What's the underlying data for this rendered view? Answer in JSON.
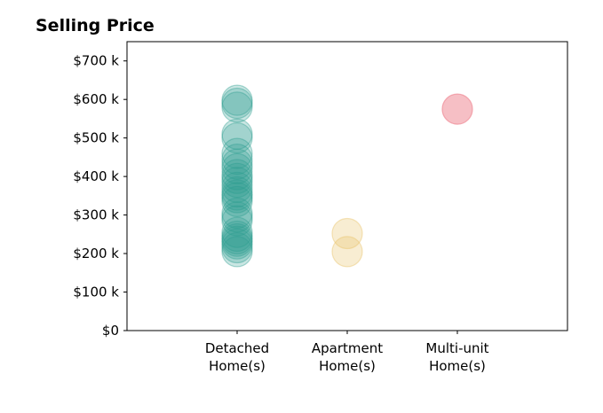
{
  "chart_data": {
    "type": "scatter",
    "title": "Selling Price",
    "xlabel": "",
    "ylabel": "",
    "categories": [
      "Detached\nHome(s)",
      "Apartment\nHome(s)",
      "Multi-unit\nHome(s)"
    ],
    "ylim": [
      0,
      750000
    ],
    "y_ticks": [
      0,
      100000,
      200000,
      300000,
      400000,
      500000,
      600000,
      700000
    ],
    "y_tick_labels": [
      "$0",
      "$100 k",
      "$200 k",
      "$300 k",
      "$400 k",
      "$500 k",
      "$600 k",
      "$700 k"
    ],
    "grid": false,
    "series": [
      {
        "category": "Detached\nHome(s)",
        "color": "#2a9d8f",
        "opacity": 0.25,
        "values": [
          205000,
          215000,
          225000,
          232000,
          238000,
          245000,
          255000,
          285000,
          295000,
          305000,
          335000,
          345000,
          352000,
          360000,
          372000,
          385000,
          395000,
          405000,
          420000,
          432000,
          445000,
          460000,
          500000,
          510000,
          580000,
          590000,
          598000
        ]
      },
      {
        "category": "Apartment\nHome(s)",
        "color": "#e9c46a",
        "opacity": 0.3,
        "values": [
          205000,
          252000
        ]
      },
      {
        "category": "Multi-unit\nHome(s)",
        "color": "#ef8a96",
        "opacity": 0.55,
        "values": [
          575000
        ]
      }
    ]
  }
}
